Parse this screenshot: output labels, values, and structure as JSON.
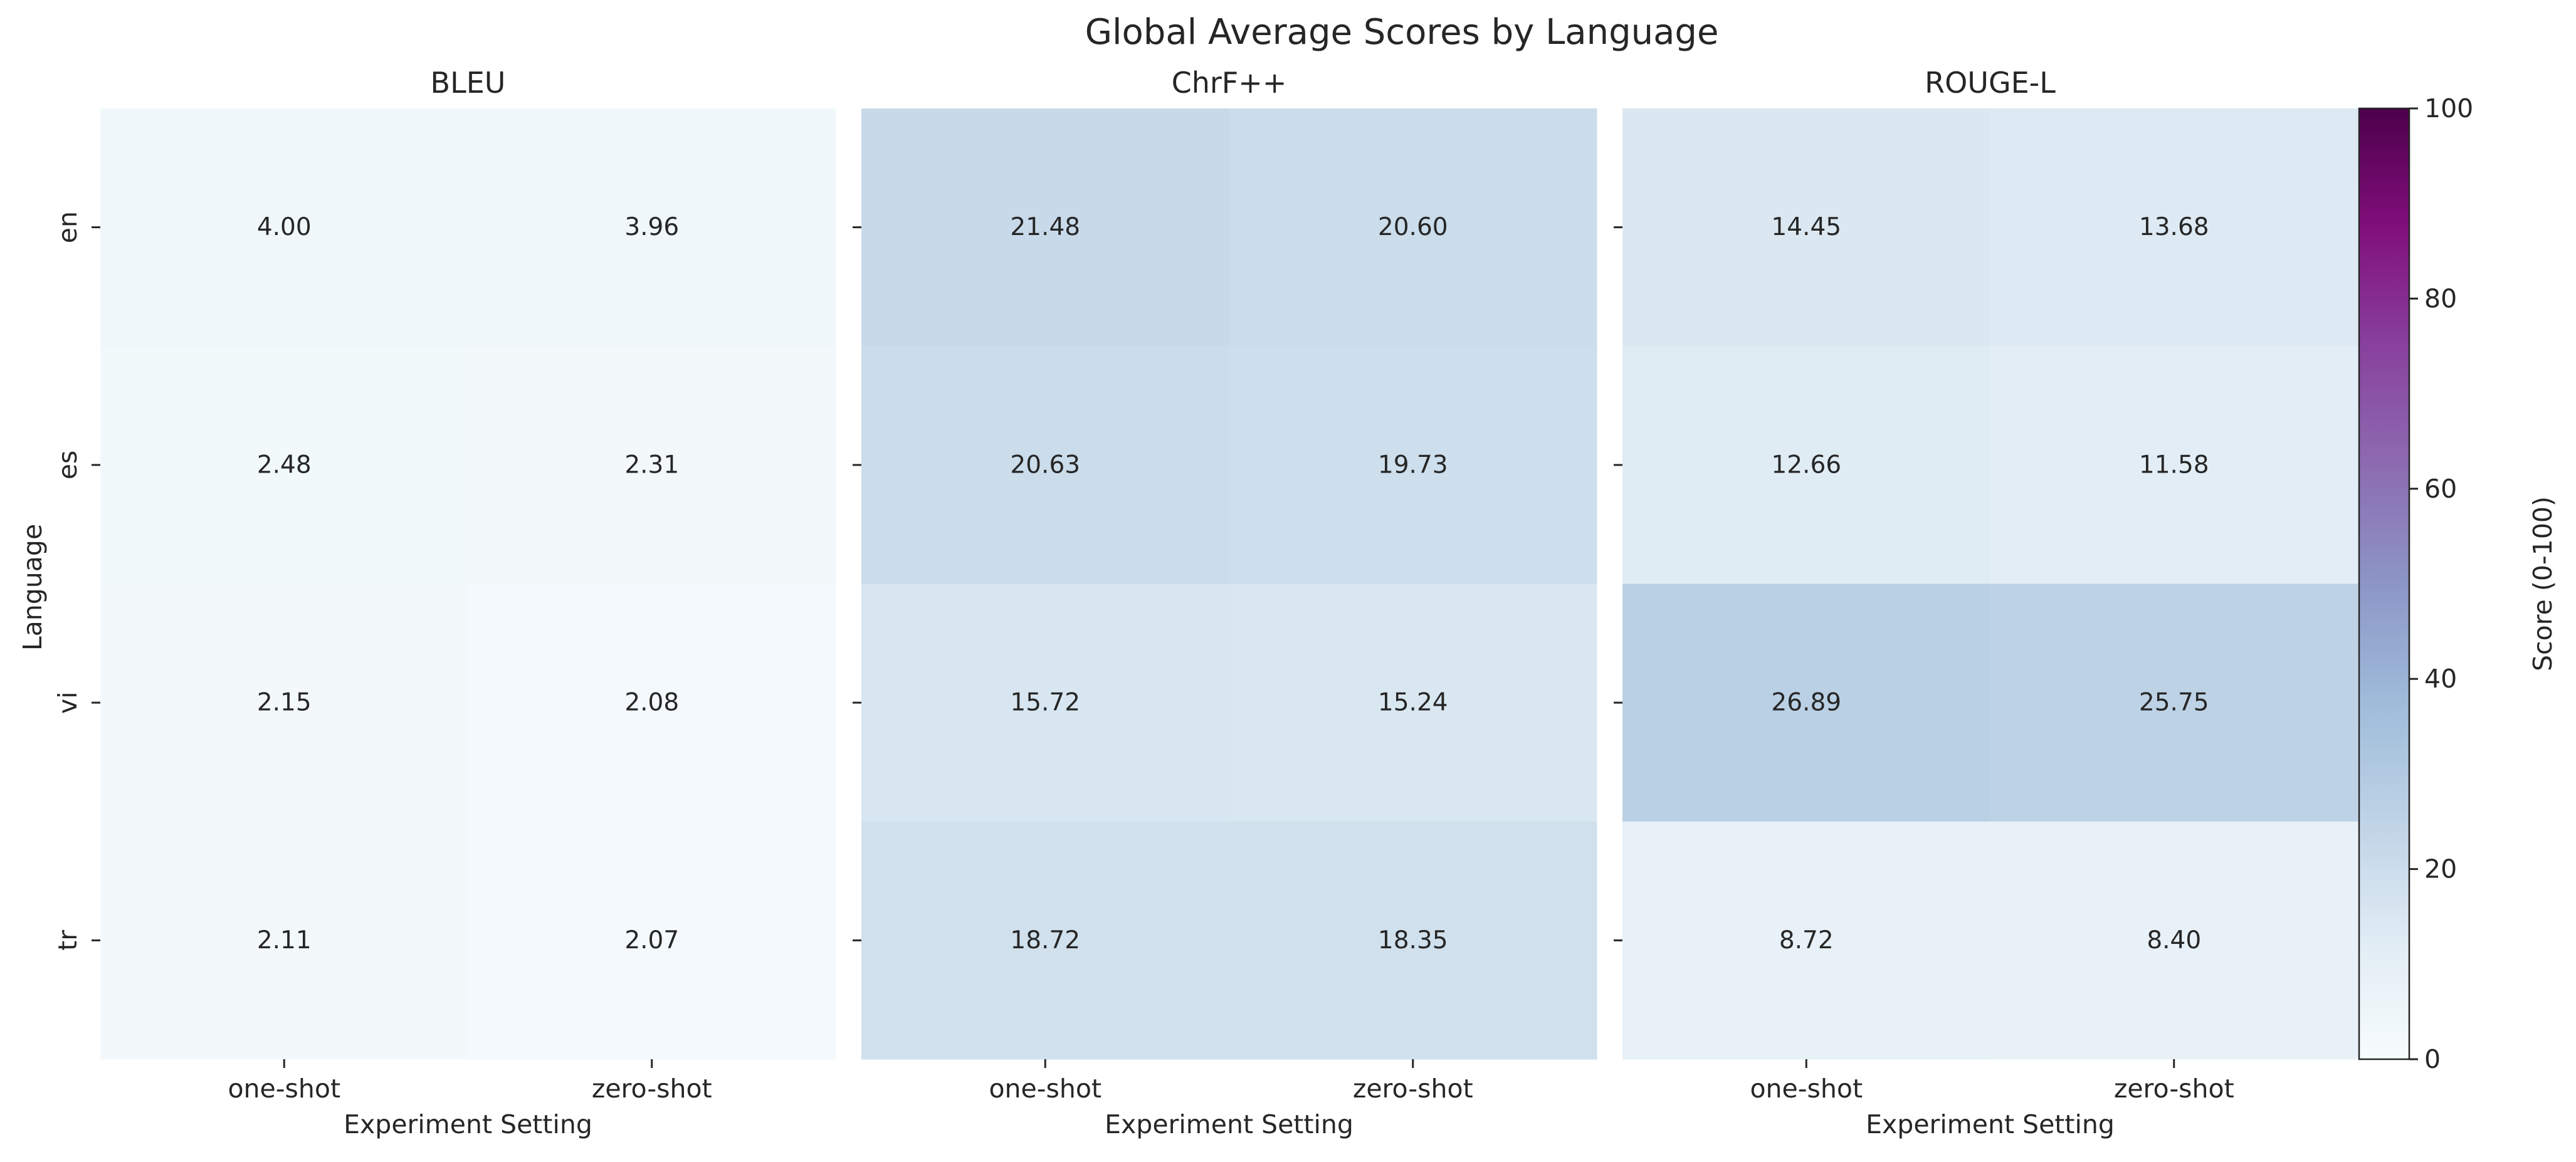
{
  "chart_data": {
    "type": "heatmap",
    "title": "Global Average Scores by Language",
    "ylabel": "Language",
    "xlabel": "Experiment Setting",
    "rows": [
      "en",
      "es",
      "vi",
      "tr"
    ],
    "columns": [
      "one-shot",
      "zero-shot"
    ],
    "panels": [
      {
        "title": "BLEU",
        "values": [
          [
            4.0,
            3.96
          ],
          [
            2.48,
            2.31
          ],
          [
            2.15,
            2.08
          ],
          [
            2.11,
            2.07
          ]
        ],
        "labels": [
          [
            "4.00",
            "3.96"
          ],
          [
            "2.48",
            "2.31"
          ],
          [
            "2.15",
            "2.08"
          ],
          [
            "2.11",
            "2.07"
          ]
        ]
      },
      {
        "title": "ChrF++",
        "values": [
          [
            21.48,
            20.6
          ],
          [
            20.63,
            19.73
          ],
          [
            15.72,
            15.24
          ],
          [
            18.72,
            18.35
          ]
        ],
        "labels": [
          [
            "21.48",
            "20.60"
          ],
          [
            "20.63",
            "19.73"
          ],
          [
            "15.72",
            "15.24"
          ],
          [
            "18.72",
            "18.35"
          ]
        ]
      },
      {
        "title": "ROUGE-L",
        "values": [
          [
            14.45,
            13.68
          ],
          [
            12.66,
            11.58
          ],
          [
            26.89,
            25.75
          ],
          [
            8.72,
            8.4
          ]
        ],
        "labels": [
          [
            "14.45",
            "13.68"
          ],
          [
            "12.66",
            "11.58"
          ],
          [
            "26.89",
            "25.75"
          ],
          [
            "8.72",
            "8.40"
          ]
        ]
      }
    ],
    "colorbar": {
      "label": "Score (0-100)",
      "range": [
        0,
        100
      ],
      "ticks": [
        0,
        20,
        40,
        60,
        80,
        100
      ],
      "colormap": "BuPu",
      "stops": [
        "#f7fcfd",
        "#e0ecf4",
        "#bfd3e6",
        "#9ebcda",
        "#8c96c6",
        "#8c6bb1",
        "#88419d",
        "#810f7c",
        "#4d004b"
      ]
    },
    "text_color": "#262626"
  }
}
